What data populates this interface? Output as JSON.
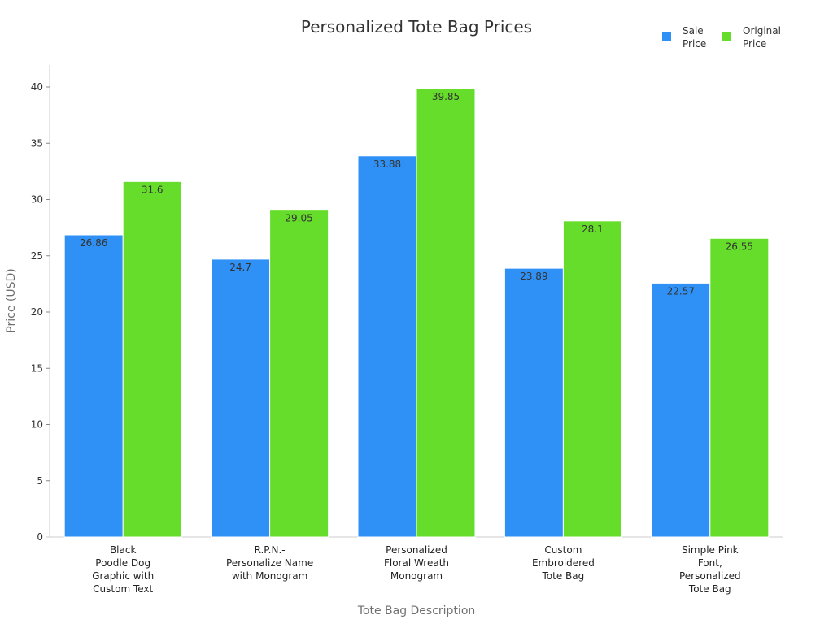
{
  "chart_data": {
    "type": "bar",
    "title": "Personalized Tote Bag Prices",
    "xlabel": "Tote Bag Description",
    "ylabel": "Price (USD)",
    "ylim": [
      0,
      42
    ],
    "yticks": [
      0,
      5,
      10,
      15,
      20,
      25,
      30,
      35,
      40
    ],
    "grid": false,
    "legend_position": "top-right",
    "categories": [
      [
        "Black",
        "Poodle Dog",
        "Graphic with",
        "Custom Text"
      ],
      [
        "R.P.N.-",
        "Personalize Name",
        "with Monogram"
      ],
      [
        "Personalized",
        "Floral Wreath",
        "Monogram"
      ],
      [
        "Custom",
        "Embroidered",
        "Tote Bag"
      ],
      [
        "Simple Pink",
        "Font,",
        "Personalized",
        "Tote Bag"
      ]
    ],
    "series": [
      {
        "name": [
          "Sale",
          "Price"
        ],
        "color": "#2f91f5",
        "values": [
          26.86,
          24.7,
          33.88,
          23.89,
          22.57
        ],
        "labels": [
          "26.86",
          "24.7",
          "33.88",
          "23.89",
          "22.57"
        ]
      },
      {
        "name": [
          "Original",
          "Price"
        ],
        "color": "#66dd2a",
        "values": [
          31.6,
          29.05,
          39.85,
          28.1,
          26.55
        ],
        "labels": [
          "31.6",
          "29.05",
          "39.85",
          "28.1",
          "26.55"
        ]
      }
    ]
  }
}
